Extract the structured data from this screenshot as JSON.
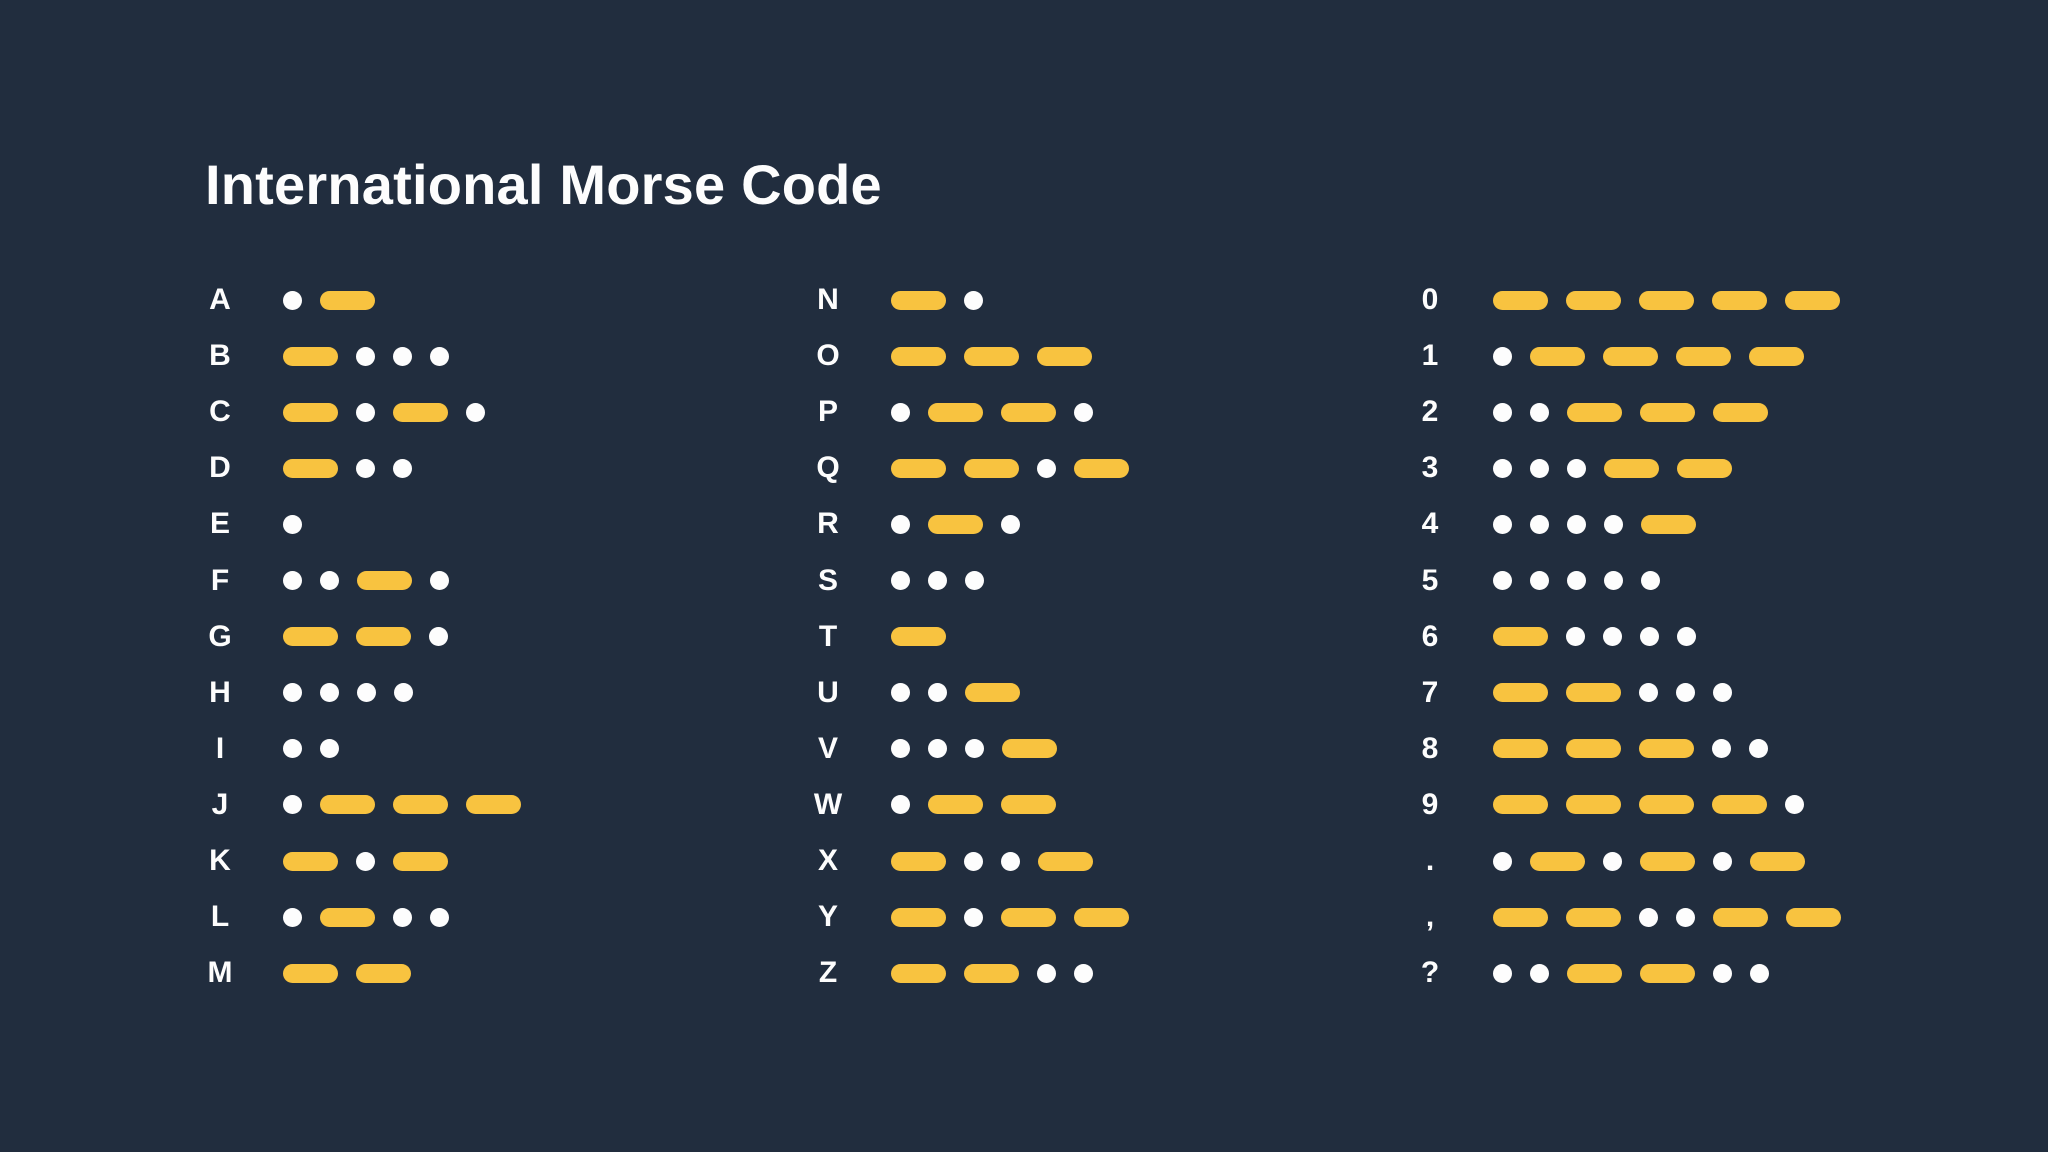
{
  "title": "International Morse Code",
  "colors": {
    "background": "#212d3e",
    "dash": "#f8c340",
    "dot": "#fdfdfd",
    "text": "#fdfdfd"
  },
  "columns": [
    {
      "rows": [
        {
          "label": "A",
          "code": ".-"
        },
        {
          "label": "B",
          "code": "-..."
        },
        {
          "label": "C",
          "code": "-.-."
        },
        {
          "label": "D",
          "code": "-.."
        },
        {
          "label": "E",
          "code": "."
        },
        {
          "label": "F",
          "code": "..-."
        },
        {
          "label": "G",
          "code": "--."
        },
        {
          "label": "H",
          "code": "...."
        },
        {
          "label": "I",
          "code": ".."
        },
        {
          "label": "J",
          "code": ".---"
        },
        {
          "label": "K",
          "code": "-.-"
        },
        {
          "label": "L",
          "code": ".-.."
        },
        {
          "label": "M",
          "code": "--"
        }
      ]
    },
    {
      "rows": [
        {
          "label": "N",
          "code": "-."
        },
        {
          "label": "O",
          "code": "---"
        },
        {
          "label": "P",
          "code": ".--."
        },
        {
          "label": "Q",
          "code": "--.-"
        },
        {
          "label": "R",
          "code": ".-."
        },
        {
          "label": "S",
          "code": "..."
        },
        {
          "label": "T",
          "code": "-"
        },
        {
          "label": "U",
          "code": "..-"
        },
        {
          "label": "V",
          "code": "...-"
        },
        {
          "label": "W",
          "code": ".--"
        },
        {
          "label": "X",
          "code": "-..-"
        },
        {
          "label": "Y",
          "code": "-.--"
        },
        {
          "label": "Z",
          "code": "--.."
        }
      ]
    },
    {
      "rows": [
        {
          "label": "0",
          "code": "-----"
        },
        {
          "label": "1",
          "code": ".----"
        },
        {
          "label": "2",
          "code": "..---"
        },
        {
          "label": "3",
          "code": "...--"
        },
        {
          "label": "4",
          "code": "....-"
        },
        {
          "label": "5",
          "code": "....."
        },
        {
          "label": "6",
          "code": "-...."
        },
        {
          "label": "7",
          "code": "--..."
        },
        {
          "label": "8",
          "code": "---.."
        },
        {
          "label": "9",
          "code": "----."
        },
        {
          "label": ".",
          "code": ".-.-.-"
        },
        {
          "label": ",",
          "code": "--..--"
        },
        {
          "label": "?",
          "code": "..--.."
        }
      ]
    }
  ]
}
